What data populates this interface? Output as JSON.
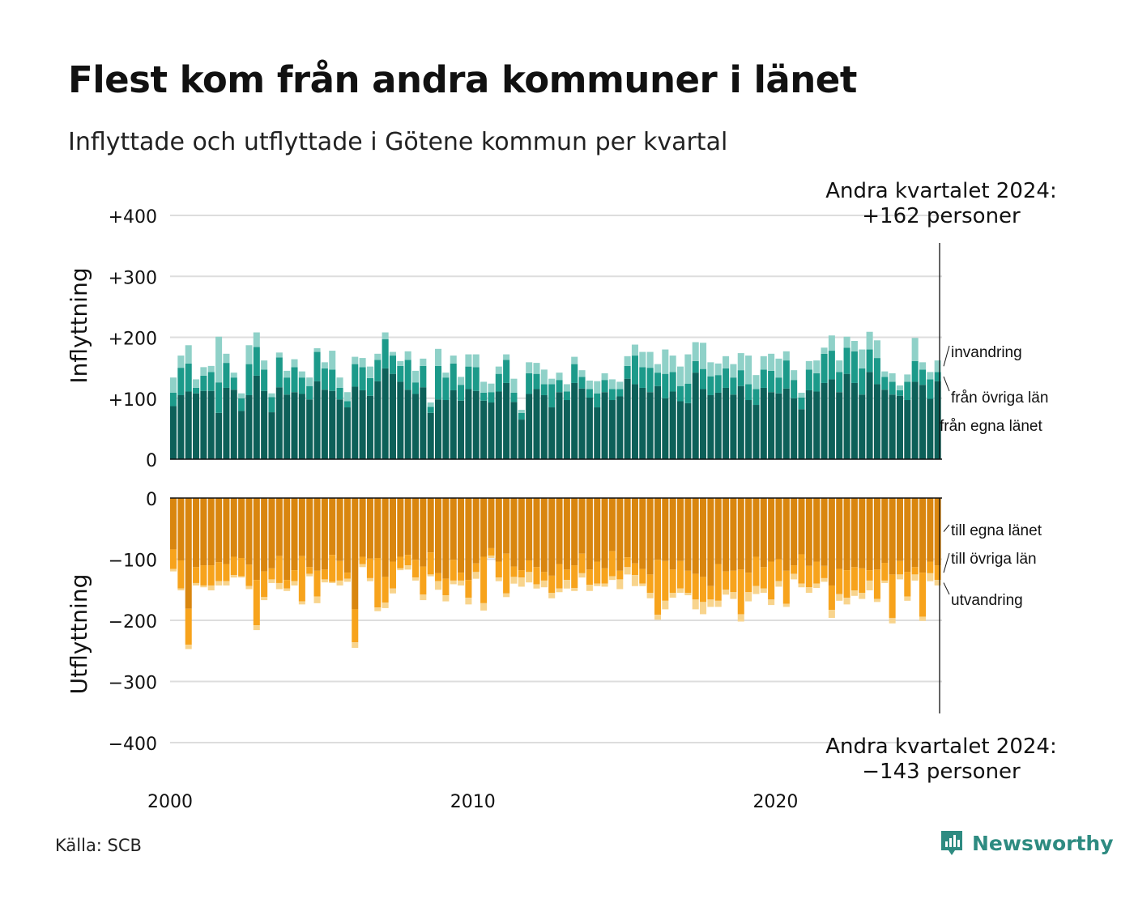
{
  "title": "Flest kom från andra kommuner i länet",
  "subtitle": "Inflyttade och utflyttade i Götene kommun per kvartal",
  "source": "Källa: SCB",
  "logo_text": "Newsworthy",
  "colors": {
    "in_own": "#0d6059",
    "in_other": "#1c9a8a",
    "in_immig": "#8fd1c8",
    "out_own": "#d9860f",
    "out_other": "#f7a31c",
    "out_emig": "#f8d48d",
    "grid": "#dddddd",
    "logo": "#2e8b81"
  },
  "chart_data": [
    {
      "type": "bar",
      "stacked": true,
      "ylabel": "Inflyttning",
      "ylim": [
        0,
        400
      ],
      "y_ticks": [
        "0",
        "+100",
        "+200",
        "+300",
        "+400"
      ],
      "x_ticks": [
        "2000",
        "2010",
        "2020"
      ],
      "series_labels": [
        "invandring",
        "från övriga län",
        "från egna länet"
      ],
      "annotation": {
        "line1": "Andra kvartalet 2024:",
        "line2": "+162 personer"
      },
      "series": [
        {
          "name": "från egna länet",
          "values": [
            87,
            105,
            111,
            108,
            112,
            112,
            76,
            117,
            114,
            79,
            105,
            137,
            112,
            77,
            118,
            106,
            110,
            107,
            98,
            128,
            114,
            112,
            98,
            85,
            119,
            113,
            104,
            128,
            149,
            140,
            127,
            114,
            107,
            118,
            76,
            98,
            97,
            113,
            96,
            115,
            112,
            96,
            93,
            111,
            125,
            94,
            65,
            107,
            115,
            105,
            85,
            110,
            97,
            125,
            116,
            101,
            85,
            110,
            97,
            103,
            132,
            123,
            117,
            110,
            120,
            100,
            111,
            95,
            92,
            142,
            115,
            105,
            109,
            117,
            106,
            120,
            97,
            89,
            117,
            110,
            108,
            116,
            100,
            82,
            113,
            111,
            125,
            131,
            110,
            140,
            125,
            106,
            143,
            123,
            114,
            106,
            104,
            97,
            127,
            122,
            99,
            128
          ],
          "labels": []
        },
        {
          "name": "från övriga län",
          "values": [
            22,
            45,
            46,
            9,
            25,
            31,
            50,
            41,
            20,
            21,
            51,
            47,
            35,
            25,
            49,
            28,
            41,
            27,
            22,
            48,
            35,
            35,
            19,
            10,
            37,
            38,
            29,
            35,
            48,
            30,
            26,
            49,
            19,
            35,
            10,
            55,
            37,
            44,
            26,
            37,
            39,
            13,
            17,
            29,
            38,
            15,
            11,
            34,
            25,
            18,
            38,
            20,
            14,
            31,
            19,
            14,
            23,
            20,
            18,
            12,
            21,
            47,
            34,
            40,
            22,
            40,
            32,
            25,
            32,
            19,
            33,
            31,
            29,
            32,
            28,
            26,
            26,
            26,
            30,
            35,
            26,
            46,
            30,
            19,
            34,
            30,
            48,
            47,
            33,
            43,
            52,
            43,
            37,
            43,
            21,
            21,
            9,
            30,
            34,
            25,
            32,
            15
          ],
          "labels": []
        },
        {
          "name": "invandring",
          "values": [
            25,
            20,
            30,
            14,
            14,
            10,
            75,
            15,
            8,
            8,
            31,
            24,
            15,
            6,
            8,
            11,
            13,
            10,
            14,
            6,
            10,
            31,
            17,
            15,
            12,
            15,
            19,
            10,
            11,
            6,
            8,
            14,
            19,
            12,
            7,
            28,
            8,
            13,
            13,
            20,
            21,
            18,
            14,
            12,
            9,
            23,
            5,
            18,
            18,
            24,
            9,
            12,
            12,
            12,
            11,
            14,
            20,
            11,
            16,
            12,
            16,
            18,
            25,
            26,
            14,
            40,
            27,
            32,
            48,
            31,
            43,
            23,
            19,
            20,
            22,
            28,
            47,
            23,
            22,
            28,
            31,
            15,
            16,
            8,
            14,
            21,
            10,
            25,
            19,
            18,
            17,
            31,
            29,
            29,
            9,
            14,
            8,
            12,
            38,
            12,
            12,
            19
          ],
          "labels": []
        }
      ]
    },
    {
      "type": "bar",
      "stacked": true,
      "ylabel": "Utflyttning",
      "ylim": [
        -400,
        0
      ],
      "y_ticks": [
        "0",
        "−100",
        "−200",
        "−300",
        "−400"
      ],
      "x_ticks": [
        "2000",
        "2010",
        "2020"
      ],
      "series_labels": [
        "till egna länet",
        "till övriga län",
        "utvandring"
      ],
      "annotation": {
        "line1": "Andra kvartalet 2024:",
        "line2": "−143 personer"
      },
      "series": [
        {
          "name": "till egna länet",
          "values": [
            -84,
            -102,
            -181,
            -113,
            -110,
            -110,
            -105,
            -108,
            -96,
            -98,
            -109,
            -134,
            -120,
            -115,
            -95,
            -134,
            -118,
            -95,
            -113,
            -119,
            -117,
            -93,
            -103,
            -122,
            -182,
            -96,
            -99,
            -98,
            -129,
            -104,
            -96,
            -93,
            -101,
            -112,
            -89,
            -123,
            -132,
            -101,
            -122,
            -134,
            -107,
            -96,
            -82,
            -104,
            -91,
            -112,
            -118,
            -102,
            -113,
            -121,
            -127,
            -108,
            -117,
            -110,
            -91,
            -117,
            -104,
            -115,
            -87,
            -119,
            -97,
            -107,
            -116,
            -125,
            -101,
            -103,
            -117,
            -103,
            -119,
            -124,
            -129,
            -144,
            -108,
            -120,
            -119,
            -117,
            -122,
            -96,
            -113,
            -104,
            -100,
            -119,
            -110,
            -92,
            -111,
            -104,
            -111,
            -143,
            -116,
            -118,
            -113,
            -115,
            -118,
            -117,
            -106,
            -125,
            -103,
            -121,
            -113,
            -122,
            -104,
            -110
          ],
          "labels": []
        },
        {
          "name": "till övriga län",
          "values": [
            -32,
            -46,
            -59,
            -26,
            -33,
            -33,
            -31,
            -28,
            -30,
            -30,
            -35,
            -74,
            -42,
            -18,
            -44,
            -14,
            -18,
            -74,
            -11,
            -42,
            -16,
            -44,
            -32,
            -10,
            -54,
            -12,
            -32,
            -81,
            -42,
            -44,
            -19,
            -17,
            -29,
            -46,
            -36,
            -13,
            -27,
            -34,
            -13,
            -29,
            -14,
            -76,
            -12,
            -26,
            -65,
            -17,
            -12,
            -19,
            -28,
            -14,
            -28,
            -40,
            -17,
            -37,
            -32,
            -25,
            -36,
            -25,
            -41,
            -14,
            -16,
            -19,
            -24,
            -30,
            -90,
            -65,
            -38,
            -45,
            -36,
            -42,
            -41,
            -22,
            -60,
            -30,
            -35,
            -73,
            -32,
            -48,
            -35,
            -62,
            -36,
            -54,
            -14,
            -48,
            -35,
            -36,
            -20,
            -40,
            -41,
            -45,
            -38,
            -40,
            -17,
            -48,
            -29,
            -71,
            -22,
            -40,
            -12,
            -72,
            -19,
            -24
          ],
          "labels": []
        },
        {
          "name": "utvandring",
          "values": [
            -4,
            -3,
            -7,
            -4,
            -3,
            -8,
            -7,
            -7,
            -4,
            -2,
            -5,
            -8,
            -5,
            -6,
            -10,
            -4,
            -7,
            -5,
            -4,
            -11,
            -5,
            -2,
            -8,
            -5,
            -9,
            -5,
            -5,
            -6,
            -9,
            -8,
            -3,
            -7,
            -5,
            -9,
            -3,
            -14,
            -10,
            -6,
            -8,
            -11,
            -11,
            -12,
            -4,
            -6,
            -6,
            -11,
            -15,
            -17,
            -7,
            -11,
            -9,
            -6,
            -14,
            -5,
            -7,
            -10,
            -4,
            -5,
            -6,
            -16,
            -12,
            -18,
            -4,
            -9,
            -8,
            -14,
            -8,
            -7,
            -4,
            -16,
            -20,
            -12,
            -10,
            -8,
            -11,
            -12,
            -15,
            -13,
            -7,
            -9,
            -9,
            -5,
            -9,
            -6,
            -9,
            -7,
            -6,
            -13,
            -11,
            -11,
            -9,
            -10,
            -16,
            -5,
            -4,
            -9,
            -8,
            -7,
            -10,
            -7,
            -13,
            -9
          ],
          "labels": []
        }
      ]
    }
  ]
}
